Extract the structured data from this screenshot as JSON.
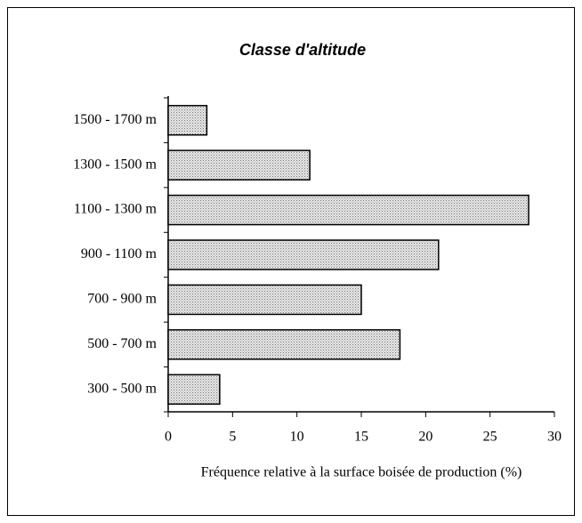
{
  "chart_data": {
    "type": "bar",
    "orientation": "horizontal",
    "title": "Classe d'altitude",
    "xlabel": "Fréquence relative à la surface boisée de production (%)",
    "categories": [
      "1500 - 1700 m",
      "1300 - 1500 m",
      "1100 - 1300 m",
      "900 - 1100 m",
      "700 - 900 m",
      "500 - 700 m",
      "300 - 500 m"
    ],
    "values": [
      3,
      11,
      28,
      21,
      15,
      18,
      4
    ],
    "xlim": [
      0,
      30
    ],
    "xticks": [
      0,
      5,
      10,
      15,
      20,
      25,
      30
    ],
    "grid": false
  }
}
